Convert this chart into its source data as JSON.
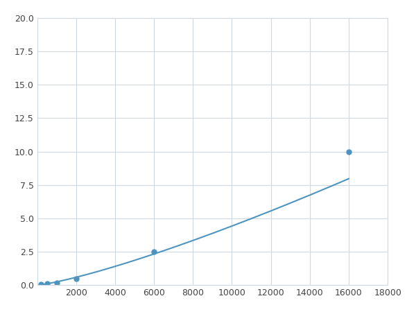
{
  "x": [
    200,
    500,
    1000,
    2000,
    6000,
    16000
  ],
  "y": [
    0.05,
    0.1,
    0.15,
    0.5,
    2.5,
    10.0
  ],
  "line_color": "#4d94c1",
  "marker_color": "#4d94c1",
  "marker_style": "o",
  "marker_size": 5,
  "line_width": 1.5,
  "xlim": [
    0,
    18000
  ],
  "ylim": [
    0,
    20
  ],
  "xticks": [
    0,
    2000,
    4000,
    6000,
    8000,
    10000,
    12000,
    14000,
    16000,
    18000
  ],
  "yticks": [
    0.0,
    2.5,
    5.0,
    7.5,
    10.0,
    12.5,
    15.0,
    17.5,
    20.0
  ],
  "grid_color": "#d0d8e0",
  "plot_bg": "#ffffff",
  "figure_bg": "#ffffff"
}
